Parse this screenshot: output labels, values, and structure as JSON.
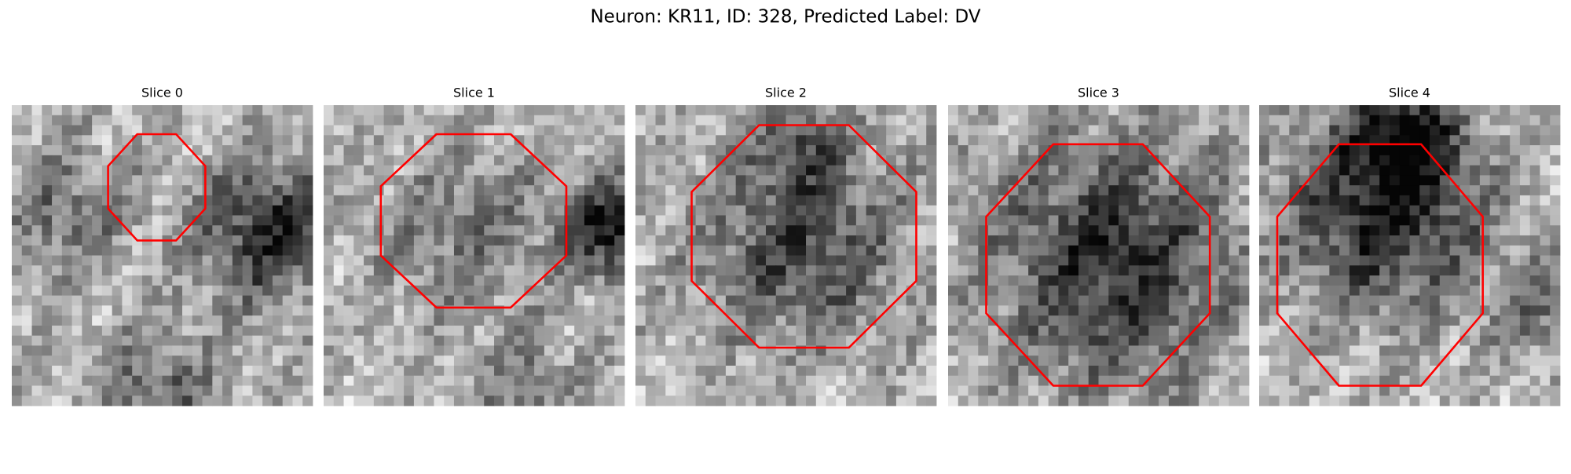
{
  "title": "Neuron: KR11, ID: 328, Predicted Label: DV",
  "panels": [
    {
      "title": "Slice 0"
    },
    {
      "title": "Slice 1"
    },
    {
      "title": "Slice 2"
    },
    {
      "title": "Slice 3"
    },
    {
      "title": "Slice 4"
    }
  ]
}
